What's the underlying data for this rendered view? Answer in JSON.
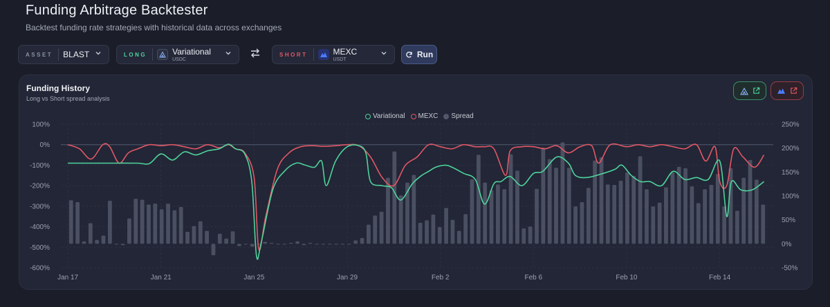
{
  "header": {
    "title": "Funding Arbitrage Backtester",
    "subtitle": "Backtest funding rate strategies with historical data across exchanges"
  },
  "controls": {
    "asset_tag": "ASSET",
    "asset_value": "BLAST",
    "long_tag": "LONG",
    "long_exchange": "Variational",
    "long_quote": "USDC",
    "short_tag": "SHORT",
    "short_exchange": "MEXC",
    "short_quote": "USDT",
    "run_label": "Run"
  },
  "panel": {
    "title": "Funding History",
    "subtitle": "Long vs Short spread analysis"
  },
  "colors": {
    "variational": "#4fd39c",
    "mexc": "#e25766",
    "spread": "#515768",
    "accent": "#4a5a8a"
  },
  "chart_data": {
    "type": "line+bar",
    "legend": [
      "Variational",
      "MEXC",
      "Spread"
    ],
    "x_tick_labels": [
      "Jan 17",
      "Jan 21",
      "Jan 25",
      "Jan 29",
      "Feb 2",
      "Feb 6",
      "Feb 10",
      "Feb 14"
    ],
    "x_tick_days": [
      0,
      4,
      8,
      12,
      16,
      20,
      24,
      28
    ],
    "x_range_days": [
      -0.3,
      30.3
    ],
    "y_left": {
      "range": [
        -600,
        100
      ],
      "ticks": [
        100,
        0,
        -100,
        -200,
        -300,
        -400,
        -500,
        -600
      ],
      "unit": "%"
    },
    "y_right": {
      "range": [
        -50,
        250
      ],
      "ticks": [
        250,
        200,
        150,
        100,
        50,
        0,
        -50
      ],
      "unit": "%"
    },
    "series": [
      {
        "name": "Variational",
        "axis": "left",
        "points": [
          [
            0,
            -90
          ],
          [
            1,
            -90
          ],
          [
            2,
            -90
          ],
          [
            3,
            -90
          ],
          [
            3.5,
            -92
          ],
          [
            4,
            -45
          ],
          [
            4.5,
            -75
          ],
          [
            5,
            -35
          ],
          [
            5.5,
            -50
          ],
          [
            6,
            -30
          ],
          [
            6.5,
            -20
          ],
          [
            6.9,
            2
          ],
          [
            7.2,
            -20
          ],
          [
            7.6,
            -45
          ],
          [
            7.9,
            -180
          ],
          [
            8.1,
            -540
          ],
          [
            8.3,
            -480
          ],
          [
            8.8,
            -220
          ],
          [
            9.3,
            -130
          ],
          [
            9.8,
            -90
          ],
          [
            10.2,
            -100
          ],
          [
            10.6,
            -110
          ],
          [
            10.9,
            -80
          ],
          [
            11.1,
            -200
          ],
          [
            11.5,
            -80
          ],
          [
            12,
            -10
          ],
          [
            12.5,
            -5
          ],
          [
            12.8,
            -40
          ],
          [
            13,
            -180
          ],
          [
            13.5,
            -200
          ],
          [
            13.9,
            -210
          ],
          [
            14.3,
            -270
          ],
          [
            14.8,
            -190
          ],
          [
            15.2,
            -150
          ],
          [
            15.5,
            -130
          ],
          [
            15.8,
            -110
          ],
          [
            16.2,
            -100
          ],
          [
            16.5,
            -110
          ],
          [
            17,
            -140
          ],
          [
            17.5,
            -170
          ],
          [
            17.9,
            -290
          ],
          [
            18.3,
            -190
          ],
          [
            18.6,
            -180
          ],
          [
            19,
            -155
          ],
          [
            19.5,
            -200
          ],
          [
            20,
            -140
          ],
          [
            20.4,
            -130
          ],
          [
            21,
            -60
          ],
          [
            21.5,
            -90
          ],
          [
            21.8,
            -150
          ],
          [
            22.3,
            -160
          ],
          [
            23,
            -140
          ],
          [
            23.5,
            -120
          ],
          [
            23.8,
            -100
          ],
          [
            24.2,
            -150
          ],
          [
            24.6,
            -180
          ],
          [
            25,
            -180
          ],
          [
            25.5,
            -200
          ],
          [
            26,
            -130
          ],
          [
            26.5,
            -170
          ],
          [
            27,
            -160
          ],
          [
            27.5,
            -170
          ],
          [
            28,
            -80
          ],
          [
            28.3,
            -350
          ],
          [
            28.5,
            -180
          ],
          [
            28.9,
            -220
          ],
          [
            29.4,
            -220
          ],
          [
            29.9,
            -180
          ]
        ]
      },
      {
        "name": "MEXC",
        "axis": "left",
        "points": [
          [
            0,
            0
          ],
          [
            0.5,
            -20
          ],
          [
            1,
            -70
          ],
          [
            1.5,
            0
          ],
          [
            1.8,
            -10
          ],
          [
            2.2,
            -90
          ],
          [
            2.6,
            -40
          ],
          [
            3,
            -20
          ],
          [
            3.5,
            0
          ],
          [
            4,
            -5
          ],
          [
            4.5,
            0
          ],
          [
            5,
            -10
          ],
          [
            5.5,
            -20
          ],
          [
            6,
            0
          ],
          [
            6.5,
            -15
          ],
          [
            6.9,
            0
          ],
          [
            7.2,
            -20
          ],
          [
            7.6,
            -40
          ],
          [
            8,
            -160
          ],
          [
            8.2,
            -510
          ],
          [
            8.5,
            -350
          ],
          [
            9,
            -120
          ],
          [
            9.5,
            -40
          ],
          [
            10,
            -10
          ],
          [
            10.5,
            -5
          ],
          [
            11,
            -8
          ],
          [
            11.5,
            -5
          ],
          [
            12,
            0
          ],
          [
            12.5,
            -5
          ],
          [
            13,
            -60
          ],
          [
            13.5,
            -160
          ],
          [
            14,
            -200
          ],
          [
            14.5,
            -100
          ],
          [
            15,
            -60
          ],
          [
            15.5,
            0
          ],
          [
            16,
            -10
          ],
          [
            16.5,
            -20
          ],
          [
            17,
            0
          ],
          [
            17.5,
            -10
          ],
          [
            17.9,
            -10
          ],
          [
            18.3,
            -20
          ],
          [
            18.8,
            -150
          ],
          [
            19,
            -30
          ],
          [
            19.5,
            -10
          ],
          [
            20,
            -10
          ],
          [
            20.5,
            -20
          ],
          [
            21,
            -5
          ],
          [
            21.5,
            -40
          ],
          [
            22,
            -10
          ],
          [
            22.5,
            -5
          ],
          [
            22.8,
            -90
          ],
          [
            23.3,
            0
          ],
          [
            24,
            -10
          ],
          [
            24.5,
            0
          ],
          [
            25,
            -10
          ],
          [
            25.5,
            0
          ],
          [
            26,
            -10
          ],
          [
            26.5,
            -20
          ],
          [
            27,
            0
          ],
          [
            27.4,
            -80
          ],
          [
            27.8,
            -10
          ],
          [
            28,
            -180
          ],
          [
            28.3,
            -200
          ],
          [
            28.6,
            -20
          ],
          [
            29,
            -60
          ],
          [
            29.5,
            -110
          ],
          [
            29.9,
            -50
          ]
        ]
      },
      {
        "name": "Spread",
        "axis": "right",
        "values": [
          91,
          87,
          5,
          43,
          8,
          17,
          90,
          0,
          -3,
          53,
          94,
          92,
          82,
          84,
          72,
          84,
          70,
          77,
          25,
          37,
          47,
          27,
          -24,
          21,
          11,
          26,
          -5,
          0,
          -6,
          -1,
          4,
          2,
          -1,
          0,
          2,
          5,
          -3,
          2,
          -1,
          -1,
          0,
          0,
          -1,
          0,
          7,
          12,
          40,
          59,
          67,
          138,
          193,
          101,
          128,
          144,
          44,
          49,
          61,
          35,
          75,
          50,
          27,
          62,
          135,
          186,
          128,
          112,
          124,
          114,
          187,
          153,
          32,
          36,
          115,
          201,
          177,
          159,
          212,
          159,
          78,
          87,
          117,
          174,
          181,
          124,
          123,
          132,
          149,
          142,
          183,
          114,
          78,
          86,
          118,
          149,
          161,
          158,
          120,
          85,
          114,
          123,
          146,
          78,
          158,
          69,
          138,
          175,
          134,
          82
        ]
      }
    ]
  }
}
